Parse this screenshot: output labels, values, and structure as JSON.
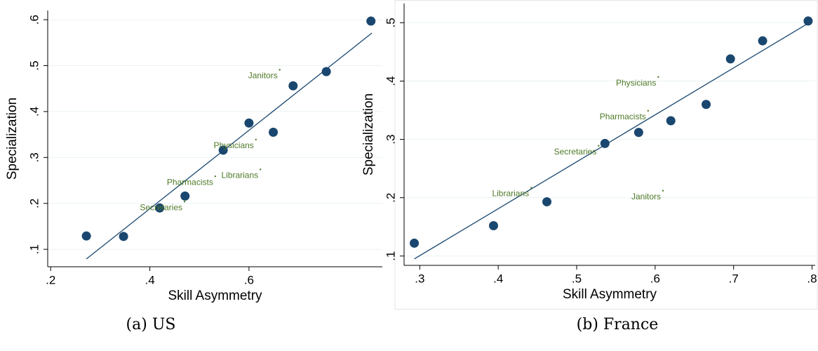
{
  "chart_data": [
    {
      "type": "scatter",
      "caption": "(a) US",
      "xlabel": "Skill Asymmetry",
      "ylabel": "Specialization",
      "xlim": [
        0.194,
        0.869
      ],
      "ylim": [
        0.062,
        0.62
      ],
      "xticks": [
        {
          "value": 0.2,
          "label": ".2"
        },
        {
          "value": 0.4,
          "label": ".4"
        },
        {
          "value": 0.6,
          "label": ".6"
        }
      ],
      "yticks": [
        {
          "value": 0.1,
          "label": ".1"
        },
        {
          "value": 0.2,
          "label": ".2"
        },
        {
          "value": 0.3,
          "label": ".3"
        },
        {
          "value": 0.4,
          "label": ".4"
        },
        {
          "value": 0.5,
          "label": ".5"
        },
        {
          "value": 0.6,
          "label": ".6"
        }
      ],
      "grid": true,
      "color": "#1a476f",
      "annotation_color": "#4f7a28",
      "points": {
        "x": [
          0.272,
          0.347,
          0.42,
          0.471,
          0.548,
          0.6,
          0.649,
          0.689,
          0.756,
          0.846
        ],
        "y": [
          0.129,
          0.128,
          0.19,
          0.216,
          0.316,
          0.375,
          0.355,
          0.456,
          0.487,
          0.597
        ]
      },
      "fit": {
        "x": [
          0.272,
          0.848
        ],
        "y": [
          0.079,
          0.571
        ]
      },
      "annotations": [
        {
          "text": "Janitors",
          "x": 0.662,
          "y": 0.491
        },
        {
          "text": "Physicians",
          "x": 0.614,
          "y": 0.339
        },
        {
          "text": "Librarians",
          "x": 0.623,
          "y": 0.274
        },
        {
          "text": "Pharmacists",
          "x": 0.532,
          "y": 0.259
        },
        {
          "text": "Secretaries",
          "x": 0.47,
          "y": 0.204
        }
      ]
    },
    {
      "type": "scatter",
      "caption": "(b) France",
      "xlabel": "Skill Asymmetry",
      "ylabel": "Specialization",
      "xlim": [
        0.28,
        0.804
      ],
      "ylim": [
        0.084,
        0.533
      ],
      "xticks": [
        {
          "value": 0.3,
          "label": ".3"
        },
        {
          "value": 0.4,
          "label": ".4"
        },
        {
          "value": 0.5,
          "label": ".5"
        },
        {
          "value": 0.6,
          "label": ".6"
        },
        {
          "value": 0.7,
          "label": ".7"
        },
        {
          "value": 0.8,
          "label": ".8"
        }
      ],
      "yticks": [
        {
          "value": 0.1,
          "label": ".1"
        },
        {
          "value": 0.2,
          "label": ".2"
        },
        {
          "value": 0.3,
          "label": ".3"
        },
        {
          "value": 0.4,
          "label": ".4"
        },
        {
          "value": 0.5,
          "label": ".5"
        }
      ],
      "grid": true,
      "color": "#1a476f",
      "annotation_color": "#4f7a28",
      "points": {
        "x": [
          0.293,
          0.394,
          0.462,
          0.536,
          0.579,
          0.62,
          0.665,
          0.696,
          0.737,
          0.795
        ],
        "y": [
          0.122,
          0.152,
          0.193,
          0.293,
          0.312,
          0.332,
          0.36,
          0.438,
          0.469,
          0.503
        ]
      },
      "fit": {
        "x": [
          0.293,
          0.8
        ],
        "y": [
          0.095,
          0.503
        ]
      },
      "annotations": [
        {
          "text": "Physicians",
          "x": 0.604,
          "y": 0.407
        },
        {
          "text": "Pharmacists",
          "x": 0.591,
          "y": 0.349
        },
        {
          "text": "Secretaries",
          "x": 0.528,
          "y": 0.289
        },
        {
          "text": "Librarians",
          "x": 0.442,
          "y": 0.217
        },
        {
          "text": "Janitors",
          "x": 0.61,
          "y": 0.212
        }
      ]
    }
  ]
}
